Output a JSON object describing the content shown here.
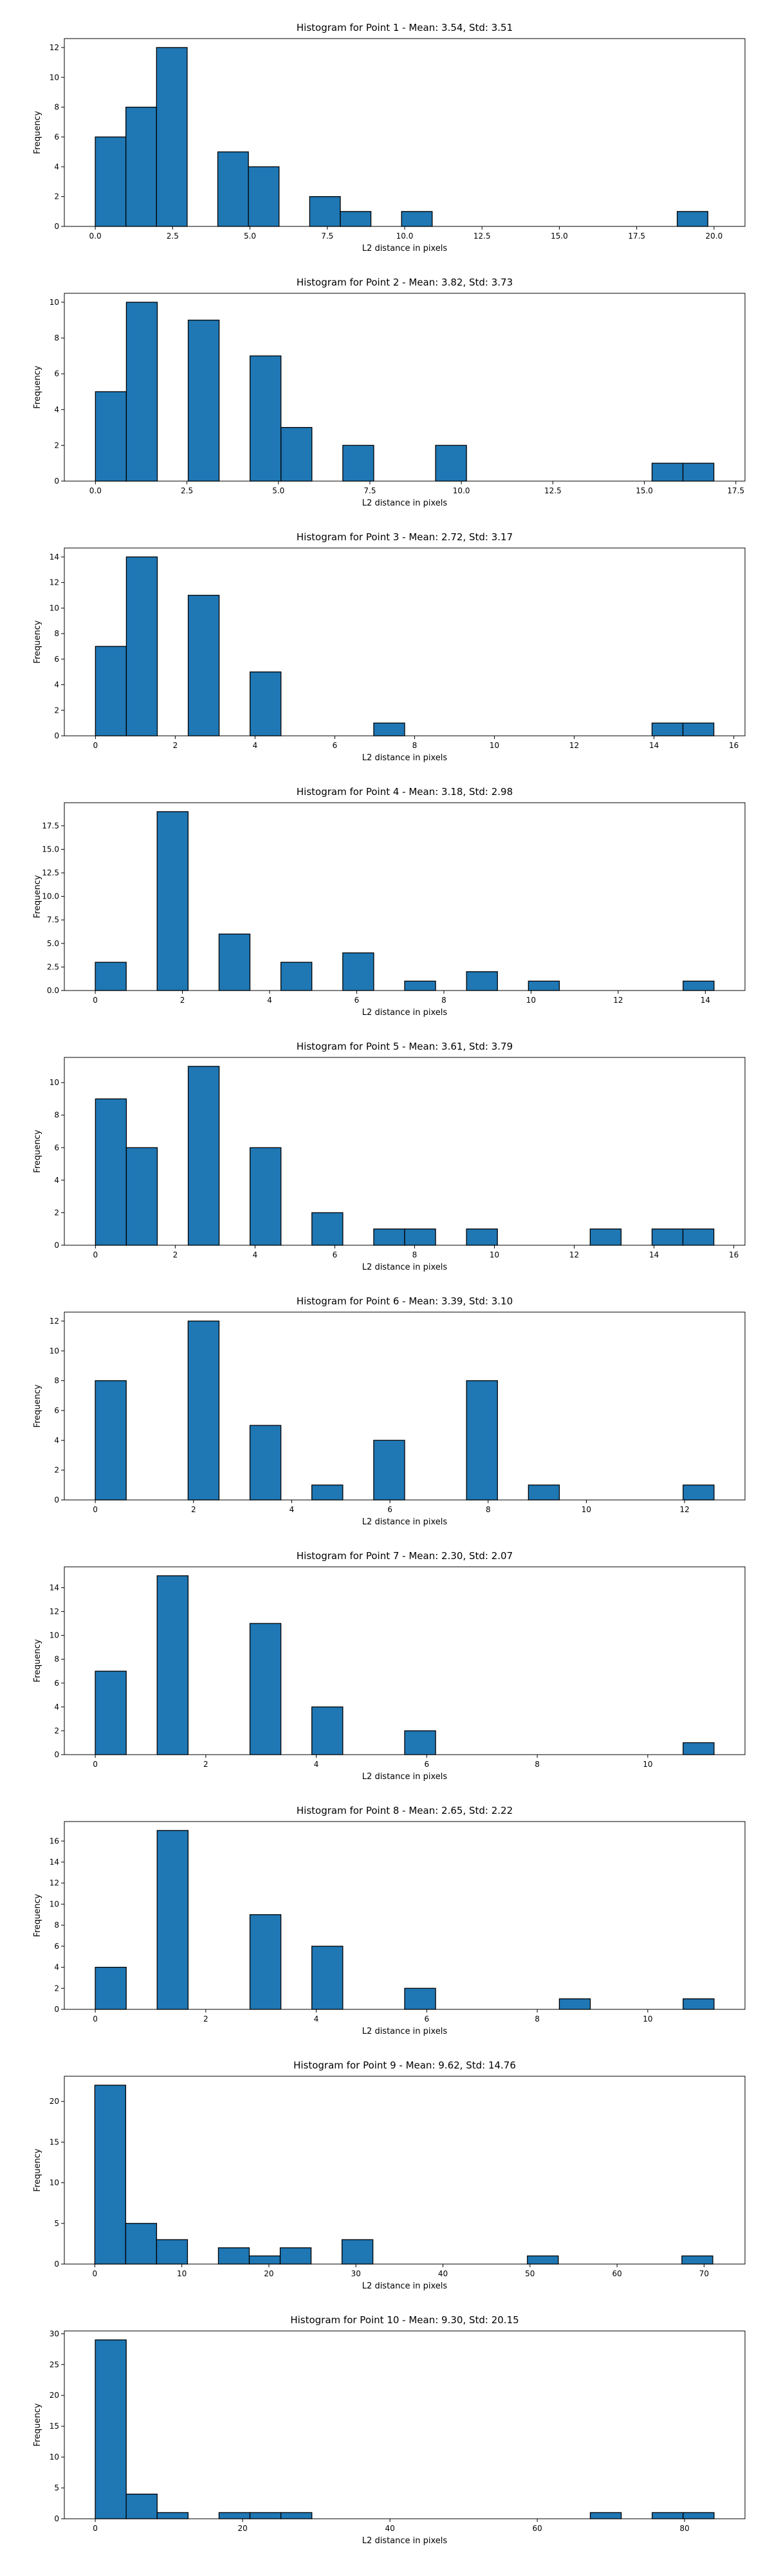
{
  "chart_data": [
    {
      "type": "bar",
      "title": "Histogram for Point 1 - Mean: 3.54, Std: 3.51",
      "xlabel": "L2 distance in pixels",
      "ylabel": "Frequency",
      "xlim": [
        -1.0,
        21.0
      ],
      "ylim": [
        0,
        12.6
      ],
      "xticks": [
        0.0,
        2.5,
        5.0,
        7.5,
        10.0,
        12.5,
        15.0,
        17.5,
        20.0
      ],
      "xtick_labels": [
        "0.0",
        "2.5",
        "5.0",
        "7.5",
        "10.0",
        "12.5",
        "15.0",
        "17.5",
        "20.0"
      ],
      "yticks": [
        0,
        2,
        4,
        6,
        8,
        10,
        12
      ],
      "ytick_labels": [
        "0",
        "2",
        "4",
        "6",
        "8",
        "10",
        "12"
      ],
      "bin_start": 0.0,
      "bin_width": 0.99,
      "values": [
        6,
        8,
        12,
        0,
        5,
        4,
        0,
        2,
        1,
        0,
        1,
        0,
        0,
        0,
        0,
        0,
        0,
        0,
        0,
        1
      ],
      "bar_color": "#1f77b4",
      "edge_color": "#000000",
      "grid": false
    },
    {
      "type": "bar",
      "title": "Histogram for Point 2 - Mean: 3.82, Std: 3.73",
      "xlabel": "L2 distance in pixels",
      "ylabel": "Frequency",
      "xlim": [
        -0.85,
        17.75
      ],
      "ylim": [
        0,
        10.5
      ],
      "xticks": [
        0.0,
        2.5,
        5.0,
        7.5,
        10.0,
        12.5,
        15.0,
        17.5
      ],
      "xtick_labels": [
        "0.0",
        "2.5",
        "5.0",
        "7.5",
        "10.0",
        "12.5",
        "15.0",
        "17.5"
      ],
      "yticks": [
        0,
        2,
        4,
        6,
        8,
        10
      ],
      "ytick_labels": [
        "0",
        "2",
        "4",
        "6",
        "8",
        "10"
      ],
      "bin_start": 0.0,
      "bin_width": 0.845,
      "values": [
        5,
        10,
        0,
        9,
        0,
        7,
        3,
        0,
        2,
        0,
        0,
        2,
        0,
        0,
        0,
        0,
        0,
        0,
        1,
        1
      ],
      "bar_color": "#1f77b4",
      "edge_color": "#000000",
      "grid": false
    },
    {
      "type": "bar",
      "title": "Histogram for Point 3 - Mean: 2.72, Std: 3.17",
      "xlabel": "L2 distance in pixels",
      "ylabel": "Frequency",
      "xlim": [
        -0.78,
        16.28
      ],
      "ylim": [
        0,
        14.7
      ],
      "xticks": [
        0,
        2,
        4,
        6,
        8,
        10,
        12,
        14,
        16
      ],
      "xtick_labels": [
        "0",
        "2",
        "4",
        "6",
        "8",
        "10",
        "12",
        "14",
        "16"
      ],
      "yticks": [
        0,
        2,
        4,
        6,
        8,
        10,
        12,
        14
      ],
      "ytick_labels": [
        "0",
        "2",
        "4",
        "6",
        "8",
        "10",
        "12",
        "14"
      ],
      "bin_start": 0.0,
      "bin_width": 0.775,
      "values": [
        7,
        14,
        0,
        11,
        0,
        5,
        0,
        0,
        0,
        1,
        0,
        0,
        0,
        0,
        0,
        0,
        0,
        0,
        1,
        1
      ],
      "bar_color": "#1f77b4",
      "edge_color": "#000000",
      "grid": false
    },
    {
      "type": "bar",
      "title": "Histogram for Point 4 - Mean: 3.18, Std: 2.98",
      "xlabel": "L2 distance in pixels",
      "ylabel": "Frequency",
      "xlim": [
        -0.71,
        14.91
      ],
      "ylim": [
        0,
        19.95
      ],
      "xticks": [
        0,
        2,
        4,
        6,
        8,
        10,
        12,
        14
      ],
      "xtick_labels": [
        "0",
        "2",
        "4",
        "6",
        "8",
        "10",
        "12",
        "14"
      ],
      "yticks": [
        0,
        2.5,
        5.0,
        7.5,
        10.0,
        12.5,
        15.0,
        17.5
      ],
      "ytick_labels": [
        "0.0",
        "2.5",
        "5.0",
        "7.5",
        "10.0",
        "12.5",
        "15.0",
        "17.5"
      ],
      "bin_start": 0.0,
      "bin_width": 0.71,
      "values": [
        3,
        0,
        19,
        0,
        6,
        0,
        3,
        0,
        4,
        0,
        1,
        0,
        2,
        0,
        1,
        0,
        0,
        0,
        0,
        1
      ],
      "bar_color": "#1f77b4",
      "edge_color": "#000000",
      "grid": false
    },
    {
      "type": "bar",
      "title": "Histogram for Point 5 - Mean: 3.61, Std: 3.79",
      "xlabel": "L2 distance in pixels",
      "ylabel": "Frequency",
      "xlim": [
        -0.78,
        16.28
      ],
      "ylim": [
        0,
        11.55
      ],
      "xticks": [
        0,
        2,
        4,
        6,
        8,
        10,
        12,
        14,
        16
      ],
      "xtick_labels": [
        "0",
        "2",
        "4",
        "6",
        "8",
        "10",
        "12",
        "14",
        "16"
      ],
      "yticks": [
        0,
        2,
        4,
        6,
        8,
        10
      ],
      "ytick_labels": [
        "0",
        "2",
        "4",
        "6",
        "8",
        "10"
      ],
      "bin_start": 0.0,
      "bin_width": 0.775,
      "values": [
        9,
        6,
        0,
        11,
        0,
        6,
        0,
        2,
        0,
        1,
        1,
        0,
        1,
        0,
        0,
        0,
        1,
        0,
        1,
        1
      ],
      "bar_color": "#1f77b4",
      "edge_color": "#000000",
      "grid": false
    },
    {
      "type": "bar",
      "title": "Histogram for Point 6 - Mean: 3.39, Std: 3.10",
      "xlabel": "L2 distance in pixels",
      "ylabel": "Frequency",
      "xlim": [
        -0.63,
        13.23
      ],
      "ylim": [
        0,
        12.6
      ],
      "xticks": [
        0,
        2,
        4,
        6,
        8,
        10,
        12
      ],
      "xtick_labels": [
        "0",
        "2",
        "4",
        "6",
        "8",
        "10",
        "12"
      ],
      "yticks": [
        0,
        2,
        4,
        6,
        8,
        10,
        12
      ],
      "ytick_labels": [
        "0",
        "2",
        "4",
        "6",
        "8",
        "10",
        "12"
      ],
      "bin_start": 0.0,
      "bin_width": 0.63,
      "values": [
        8,
        0,
        0,
        12,
        0,
        5,
        0,
        1,
        0,
        4,
        0,
        0,
        8,
        0,
        1,
        0,
        0,
        0,
        0,
        1
      ],
      "bar_color": "#1f77b4",
      "edge_color": "#000000",
      "grid": false
    },
    {
      "type": "bar",
      "title": "Histogram for Point 7 - Mean: 2.30, Std: 2.07",
      "xlabel": "L2 distance in pixels",
      "ylabel": "Frequency",
      "xlim": [
        -0.56,
        11.76
      ],
      "ylim": [
        0,
        15.75
      ],
      "xticks": [
        0,
        2,
        4,
        6,
        8,
        10
      ],
      "xtick_labels": [
        "0",
        "2",
        "4",
        "6",
        "8",
        "10"
      ],
      "yticks": [
        0,
        2,
        4,
        6,
        8,
        10,
        12,
        14
      ],
      "ytick_labels": [
        "0",
        "2",
        "4",
        "6",
        "8",
        "10",
        "12",
        "14"
      ],
      "bin_start": 0.0,
      "bin_width": 0.56,
      "values": [
        7,
        0,
        15,
        0,
        0,
        11,
        0,
        4,
        0,
        0,
        2,
        0,
        0,
        0,
        0,
        0,
        0,
        0,
        0,
        1
      ],
      "bar_color": "#1f77b4",
      "edge_color": "#000000",
      "grid": false
    },
    {
      "type": "bar",
      "title": "Histogram for Point 8 - Mean: 2.65, Std: 2.22",
      "xlabel": "L2 distance in pixels",
      "ylabel": "Frequency",
      "xlim": [
        -0.56,
        11.76
      ],
      "ylim": [
        0,
        17.85
      ],
      "xticks": [
        0,
        2,
        4,
        6,
        8,
        10
      ],
      "xtick_labels": [
        "0",
        "2",
        "4",
        "6",
        "8",
        "10"
      ],
      "yticks": [
        0,
        2,
        4,
        6,
        8,
        10,
        12,
        14,
        16
      ],
      "ytick_labels": [
        "0",
        "2",
        "4",
        "6",
        "8",
        "10",
        "12",
        "14",
        "16"
      ],
      "bin_start": 0.0,
      "bin_width": 0.56,
      "values": [
        4,
        0,
        17,
        0,
        0,
        9,
        0,
        6,
        0,
        0,
        2,
        0,
        0,
        0,
        0,
        1,
        0,
        0,
        0,
        1
      ],
      "bar_color": "#1f77b4",
      "edge_color": "#000000",
      "grid": false
    },
    {
      "type": "bar",
      "title": "Histogram for Point 9 - Mean: 9.62, Std: 14.76",
      "xlabel": "L2 distance in pixels",
      "ylabel": "Frequency",
      "xlim": [
        -3.5,
        74.7
      ],
      "ylim": [
        0,
        23.1
      ],
      "xticks": [
        0,
        10,
        20,
        30,
        40,
        50,
        60,
        70
      ],
      "xtick_labels": [
        "0",
        "10",
        "20",
        "30",
        "40",
        "50",
        "60",
        "70"
      ],
      "yticks": [
        0,
        5,
        10,
        15,
        20
      ],
      "ytick_labels": [
        "0",
        "5",
        "10",
        "15",
        "20"
      ],
      "bin_start": 0.0,
      "bin_width": 3.55,
      "values": [
        22,
        5,
        3,
        0,
        2,
        1,
        2,
        0,
        3,
        0,
        0,
        0,
        0,
        0,
        1,
        0,
        0,
        0,
        0,
        1
      ],
      "bar_color": "#1f77b4",
      "edge_color": "#000000",
      "grid": false
    },
    {
      "type": "bar",
      "title": "Histogram for Point 10 - Mean: 9.30, Std: 20.15",
      "xlabel": "L2 distance in pixels",
      "ylabel": "Frequency",
      "xlim": [
        -4.2,
        88.2
      ],
      "ylim": [
        0,
        30.45
      ],
      "xticks": [
        0,
        20,
        40,
        60,
        80
      ],
      "xtick_labels": [
        "0",
        "20",
        "40",
        "60",
        "80"
      ],
      "yticks": [
        0,
        5,
        10,
        15,
        20,
        25,
        30
      ],
      "ytick_labels": [
        "0",
        "5",
        "10",
        "15",
        "20",
        "25",
        "30"
      ],
      "bin_start": 0.0,
      "bin_width": 4.2,
      "values": [
        29,
        4,
        1,
        0,
        1,
        1,
        1,
        0,
        0,
        0,
        0,
        0,
        0,
        0,
        0,
        0,
        1,
        0,
        1,
        1
      ],
      "bar_color": "#1f77b4",
      "edge_color": "#000000",
      "grid": false
    }
  ]
}
